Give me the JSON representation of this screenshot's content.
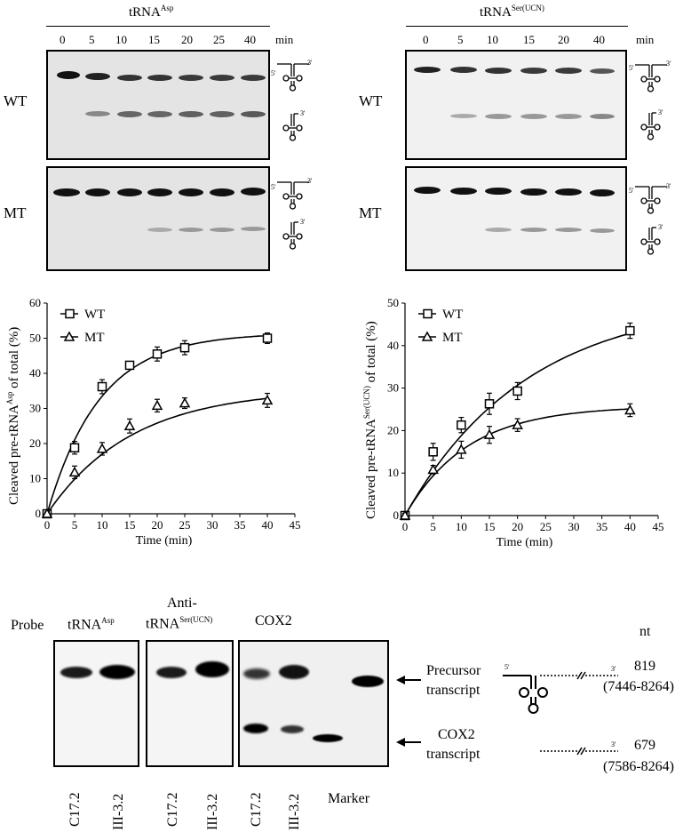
{
  "panelA": {
    "left_title_main": "tRNA",
    "left_title_sup": "Asp",
    "right_title_main": "tRNA",
    "right_title_sup": "Ser(UCN)",
    "left_times": [
      "0",
      "5",
      "10",
      "15",
      "20",
      "25",
      "40"
    ],
    "right_times": [
      "0",
      "5",
      "10",
      "15",
      "20",
      "40"
    ],
    "time_unit": "min",
    "row_wt": "WT",
    "row_mt": "MT",
    "end5": "5'",
    "end3": "3'"
  },
  "chart_data": [
    {
      "type": "scatter",
      "title": "",
      "xlabel": "Time (min)",
      "ylabel_main": "Cleaved pre-tRNA",
      "ylabel_sup": "Asp",
      "ylabel_tail": " of total (%)",
      "xlim": [
        0,
        45
      ],
      "ylim": [
        0,
        60
      ],
      "xticks": [
        "0",
        "5",
        "10",
        "15",
        "20",
        "25",
        "30",
        "35",
        "40",
        "45"
      ],
      "yticks": [
        "0",
        "10",
        "20",
        "30",
        "40",
        "50",
        "60"
      ],
      "legend_position": "top-left",
      "series": [
        {
          "name": "WT",
          "marker": "square",
          "x": [
            0,
            5,
            10,
            15,
            20,
            25,
            40
          ],
          "y": [
            0,
            18.8,
            36.2,
            42.3,
            45.5,
            47.3,
            50.0
          ],
          "err": [
            0.5,
            1.8,
            2.0,
            1.0,
            2.0,
            2.0,
            1.5
          ],
          "fit_ymax": 51.5,
          "fit_k": 0.105
        },
        {
          "name": "MT",
          "marker": "triangle",
          "x": [
            0,
            5,
            10,
            15,
            20,
            25,
            40
          ],
          "y": [
            0,
            11.8,
            18.5,
            25.0,
            30.8,
            31.5,
            32.3
          ],
          "err": [
            0.5,
            1.8,
            1.8,
            2.0,
            1.8,
            1.5,
            2.0
          ],
          "fit_ymax": 35.5,
          "fit_k": 0.065
        }
      ]
    },
    {
      "type": "scatter",
      "title": "",
      "xlabel": "Time (min)",
      "ylabel_main": "Cleaved pre-tRNA",
      "ylabel_sup": "Ser(UCN)",
      "ylabel_tail": " of total (%)",
      "xlim": [
        0,
        45
      ],
      "ylim": [
        0,
        50
      ],
      "xticks": [
        "0",
        "5",
        "10",
        "15",
        "20",
        "25",
        "30",
        "35",
        "40",
        "45"
      ],
      "yticks": [
        "0",
        "10",
        "20",
        "30",
        "40",
        "50"
      ],
      "legend_position": "top-left",
      "series": [
        {
          "name": "WT",
          "marker": "square",
          "x": [
            0,
            5,
            10,
            15,
            20,
            40
          ],
          "y": [
            0,
            15.0,
            21.3,
            26.3,
            29.3,
            43.5
          ],
          "err": [
            0.5,
            2.0,
            1.8,
            2.5,
            2.0,
            1.8
          ],
          "fit_ymax": 51,
          "fit_k": 0.046
        },
        {
          "name": "MT",
          "marker": "triangle",
          "x": [
            0,
            5,
            10,
            15,
            20,
            40
          ],
          "y": [
            0,
            10.8,
            15.5,
            19.0,
            21.3,
            24.8
          ],
          "err": [
            0.5,
            1.0,
            2.0,
            2.0,
            1.5,
            1.5
          ],
          "fit_ymax": 25.8,
          "fit_k": 0.09
        }
      ]
    }
  ],
  "panelC": {
    "probe_label": "Probe",
    "probe1_main": "tRNA",
    "probe1_sup": "Asp",
    "probe2_line1": "Anti-",
    "probe2_main": "tRNA",
    "probe2_sup": "Ser(UCN)",
    "probe3": "COX2",
    "lanes": [
      "C17.2",
      "III-3.2",
      "C17.2",
      "III-3.2",
      "C17.2",
      "III-3.2"
    ],
    "marker_label": "Marker",
    "precursor_line1": "Precursor",
    "precursor_line2": "transcript",
    "cox2_line1": "COX2",
    "cox2_line2": "transcript",
    "nt_header": "nt",
    "size1": "819",
    "range1": "(7446-8264)",
    "size2": "679",
    "range2": "(7586-8264)",
    "end5": "5'",
    "end3": "3'"
  }
}
